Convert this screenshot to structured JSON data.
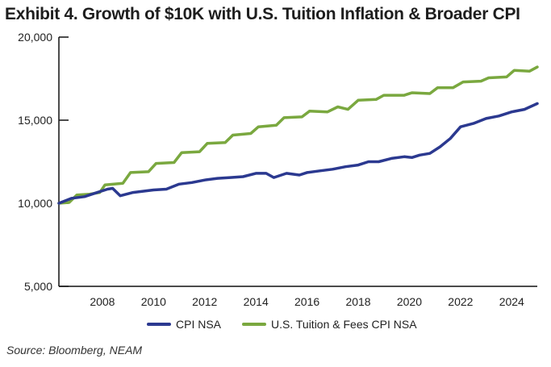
{
  "chart_data": {
    "type": "line",
    "title": "Exhibit 4. Growth of $10K with U.S. Tuition Inflation & Broader CPI",
    "xlabel": "",
    "ylabel": "",
    "xlim": [
      2006.3,
      2025.0
    ],
    "ylim": [
      5000,
      20000
    ],
    "x_ticks": [
      "2008",
      "2010",
      "2012",
      "2014",
      "2016",
      "2018",
      "2020",
      "2022",
      "2024"
    ],
    "y_ticks": [
      "5,000",
      "10,000",
      "15,000",
      "20,000"
    ],
    "grid": false,
    "legend_placement": "bottom",
    "series": [
      {
        "name": "CPI NSA",
        "color": "#2b3990",
        "x": [
          2006.3,
          2006.8,
          2007.3,
          2007.8,
          2008.2,
          2008.4,
          2008.7,
          2009.2,
          2010.0,
          2010.5,
          2011.0,
          2011.5,
          2012.0,
          2012.5,
          2013.0,
          2013.5,
          2014.0,
          2014.4,
          2014.7,
          2015.2,
          2015.7,
          2016.0,
          2016.5,
          2017.0,
          2017.5,
          2018.0,
          2018.4,
          2018.8,
          2019.3,
          2019.8,
          2020.1,
          2020.4,
          2020.8,
          2021.2,
          2021.6,
          2022.0,
          2022.5,
          2023.0,
          2023.5,
          2024.0,
          2024.5,
          2025.0
        ],
        "values": [
          10000,
          10300,
          10400,
          10650,
          10850,
          10900,
          10450,
          10650,
          10800,
          10850,
          11150,
          11250,
          11400,
          11500,
          11550,
          11600,
          11800,
          11800,
          11550,
          11800,
          11700,
          11850,
          11950,
          12050,
          12200,
          12300,
          12500,
          12500,
          12700,
          12800,
          12750,
          12900,
          13000,
          13400,
          13900,
          14600,
          14800,
          15100,
          15250,
          15500,
          15650,
          16000
        ]
      },
      {
        "name": "U.S. Tuition & Fees CPI NSA",
        "color": "#7aa83f",
        "x": [
          2006.3,
          2006.7,
          2007.0,
          2007.5,
          2007.9,
          2008.1,
          2008.8,
          2009.1,
          2009.8,
          2010.1,
          2010.8,
          2011.1,
          2011.8,
          2012.1,
          2012.8,
          2013.1,
          2013.8,
          2014.1,
          2014.8,
          2015.1,
          2015.8,
          2016.1,
          2016.8,
          2017.2,
          2017.6,
          2018.0,
          2018.7,
          2019.0,
          2019.8,
          2020.1,
          2020.8,
          2021.1,
          2021.7,
          2022.1,
          2022.8,
          2023.1,
          2023.8,
          2024.1,
          2024.7,
          2025.0
        ],
        "values": [
          10000,
          10050,
          10500,
          10550,
          10650,
          11100,
          11200,
          11850,
          11900,
          12400,
          12450,
          13050,
          13100,
          13600,
          13650,
          14100,
          14200,
          14600,
          14700,
          15150,
          15200,
          15550,
          15500,
          15800,
          15650,
          16200,
          16250,
          16500,
          16500,
          16650,
          16600,
          16950,
          16950,
          17300,
          17350,
          17550,
          17600,
          18000,
          17950,
          18200
        ]
      }
    ]
  },
  "source": "Source: Bloomberg, NEAM"
}
